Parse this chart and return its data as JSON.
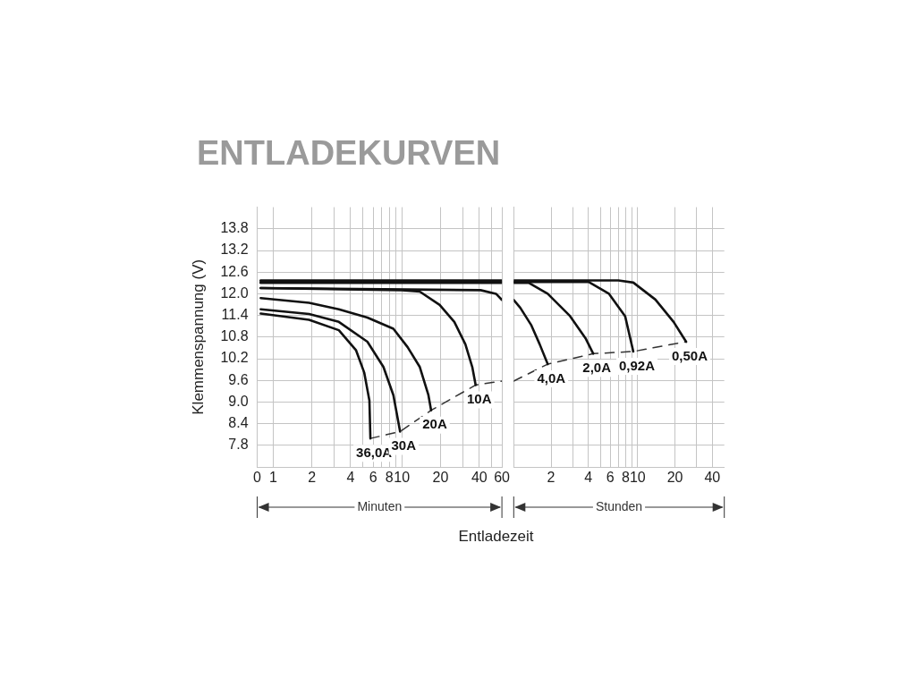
{
  "chart_data": [
    {
      "type": "line",
      "title": "ENTLADEKURVEN",
      "xlabel": "Entladezeit",
      "ylabel": "Klemmenspannung (V)",
      "annotations": [
        "Minuten"
      ],
      "log": "x",
      "grid": true,
      "legend": false,
      "marker": "none",
      "xlim": [
        0,
        60
      ],
      "ylim": [
        7.2,
        14.4
      ],
      "xticks": [
        0,
        1,
        2,
        {
          "value": 3,
          "label": null
        },
        4,
        {
          "value": 5,
          "label": null
        },
        6,
        {
          "value": 7,
          "label": null
        },
        8,
        {
          "value": 9,
          "label": null
        },
        10,
        20,
        {
          "value": 30,
          "label": null
        },
        40,
        {
          "value": 50,
          "label": null
        },
        60
      ],
      "yticks": [
        7.8,
        8.4,
        {
          "value": 9,
          "label": "9.0"
        },
        9.6,
        10.2,
        10.8,
        11.4,
        {
          "value": 12,
          "label": "12.0"
        },
        12.6,
        13.2,
        13.8
      ],
      "series": [
        {
          "name": "36,0A",
          "color": "#111111",
          "x": [
            0.8,
            1.9,
            3.24,
            4.4,
            5.1,
            5.6,
            5.7
          ],
          "values": [
            11.45,
            11.28,
            10.99,
            10.44,
            9.82,
            9.04,
            7.99
          ]
        },
        {
          "name": "30A",
          "color": "#111111",
          "x": [
            0.8,
            1.9,
            3.24,
            5.4,
            7.2,
            8.6,
            9.7
          ],
          "values": [
            11.57,
            11.44,
            11.22,
            10.67,
            9.97,
            9.19,
            8.18
          ]
        },
        {
          "name": "20A",
          "color": "#111111",
          "x": [
            0.8,
            1.9,
            3.24,
            5.4,
            8.6,
            11.1,
            13.8,
            16.1,
            16.9
          ],
          "values": [
            11.88,
            11.75,
            11.57,
            11.34,
            11.03,
            10.52,
            9.97,
            9.19,
            8.77
          ]
        },
        {
          "name": "10A",
          "color": "#111111",
          "x": [
            0.8,
            10,
            13.8,
            19.7,
            25.6,
            31.2,
            35.3,
            37.5
          ],
          "values": [
            12.16,
            12.1,
            12.06,
            11.69,
            11.22,
            10.6,
            9.97,
            9.47
          ]
        },
        {
          "color": "#111111",
          "x": [
            0.8,
            41,
            54,
            60
          ],
          "values": [
            12.16,
            12.1,
            12.0,
            11.83
          ]
        },
        {
          "color": "#111111",
          "x": [
            0.8,
            60
          ],
          "values": [
            12.3,
            12.3
          ]
        },
        {
          "color": "#111111",
          "x": [
            0.8,
            60
          ],
          "values": [
            12.33,
            12.33
          ]
        },
        {
          "color": "#111111",
          "x": [
            0.8,
            60
          ],
          "values": [
            12.37,
            12.37
          ]
        },
        {
          "color": "#333333",
          "line_style": "dashed",
          "x": [
            5.7,
            9.7,
            16.9,
            37.5,
            60
          ],
          "values": [
            7.99,
            8.18,
            8.77,
            9.47,
            9.58
          ]
        }
      ]
    },
    {
      "type": "line",
      "annotations": [
        "Stunden"
      ],
      "log": "x",
      "grid": true,
      "legend": false,
      "marker": "none",
      "tick_labels": "x",
      "xlim": [
        1,
        50
      ],
      "ylim": [
        7.2,
        14.4
      ],
      "xticks": [
        2,
        {
          "value": 3,
          "label": null
        },
        4,
        {
          "value": 5,
          "label": null
        },
        6,
        {
          "value": 7,
          "label": null
        },
        8,
        {
          "value": 9,
          "label": null
        },
        10,
        20,
        {
          "value": 30,
          "label": null
        },
        40
      ],
      "yticks": [
        7.8,
        8.4,
        9,
        9.6,
        10.2,
        10.8,
        11.4,
        12,
        12.6,
        13.2,
        13.8
      ],
      "series": [
        {
          "name": "4,0A",
          "color": "#111111",
          "x": [
            1,
            1.13,
            1.38,
            1.62,
            1.88
          ],
          "values": [
            11.83,
            11.61,
            11.14,
            10.6,
            10.05
          ]
        },
        {
          "name": "2,0A",
          "color": "#111111",
          "x": [
            1,
            1.33,
            1.88,
            2.85,
            3.82,
            4.38
          ],
          "values": [
            12.3,
            12.3,
            12.0,
            11.38,
            10.75,
            10.34
          ]
        },
        {
          "name": "0,92A",
          "color": "#111111",
          "x": [
            1,
            4.02,
            5.87,
            7.92,
            9.22
          ],
          "values": [
            12.33,
            12.33,
            12.0,
            11.38,
            10.4
          ]
        },
        {
          "name": "0,50A",
          "color": "#111111",
          "x": [
            1,
            7,
            9.22,
            13.9,
            19.5,
            24.6
          ],
          "values": [
            12.37,
            12.37,
            12.31,
            11.84,
            11.22,
            10.67
          ]
        },
        {
          "color": "#333333",
          "line_style": "dashed",
          "x": [
            1,
            1.88,
            4.38,
            9.22,
            24.6
          ],
          "values": [
            9.58,
            10.05,
            10.34,
            10.4,
            10.67
          ]
        }
      ]
    }
  ]
}
